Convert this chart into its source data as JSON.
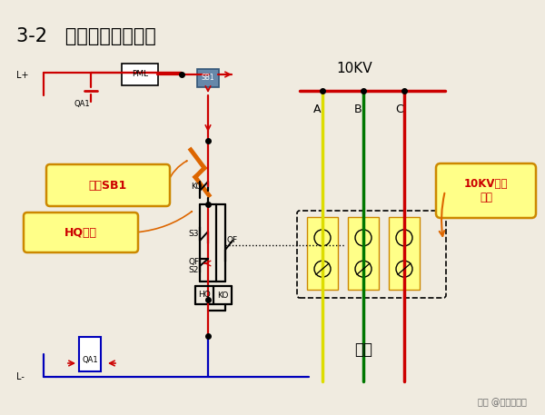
{
  "title": "3-2   防止开关跳跃原理",
  "title_fontsize": 16,
  "bg_color": "#f0ebe0",
  "red": "#cc0000",
  "blue": "#0000bb",
  "black": "#000000",
  "orange": "#dd6600",
  "annotation_bg": "#ffff88",
  "annotation_border": "#cc8800",
  "watermark": "头条 @兴福园电力",
  "fuse_label": "负载",
  "voltage_label": "10KV",
  "ann1": "按下SB1",
  "ann2": "HQ得电",
  "ann3": "10KV真空\n开关",
  "label_L_plus": "L+",
  "label_L_minus": "L-",
  "label_QA1": "QA1",
  "label_PML": "PML",
  "label_SB1": "SB1",
  "label_KO": "KO",
  "label_S3": "S3",
  "label_QF": "QF",
  "label_QF2": "QF",
  "label_S2": "S2",
  "label_HQ": "HQ",
  "label_KO2": "KO",
  "phase_A": "A",
  "phase_B": "B",
  "phase_C": "C",
  "col_yellow": "#dddd00",
  "col_green": "#007700",
  "col_red_phase": "#cc0000"
}
